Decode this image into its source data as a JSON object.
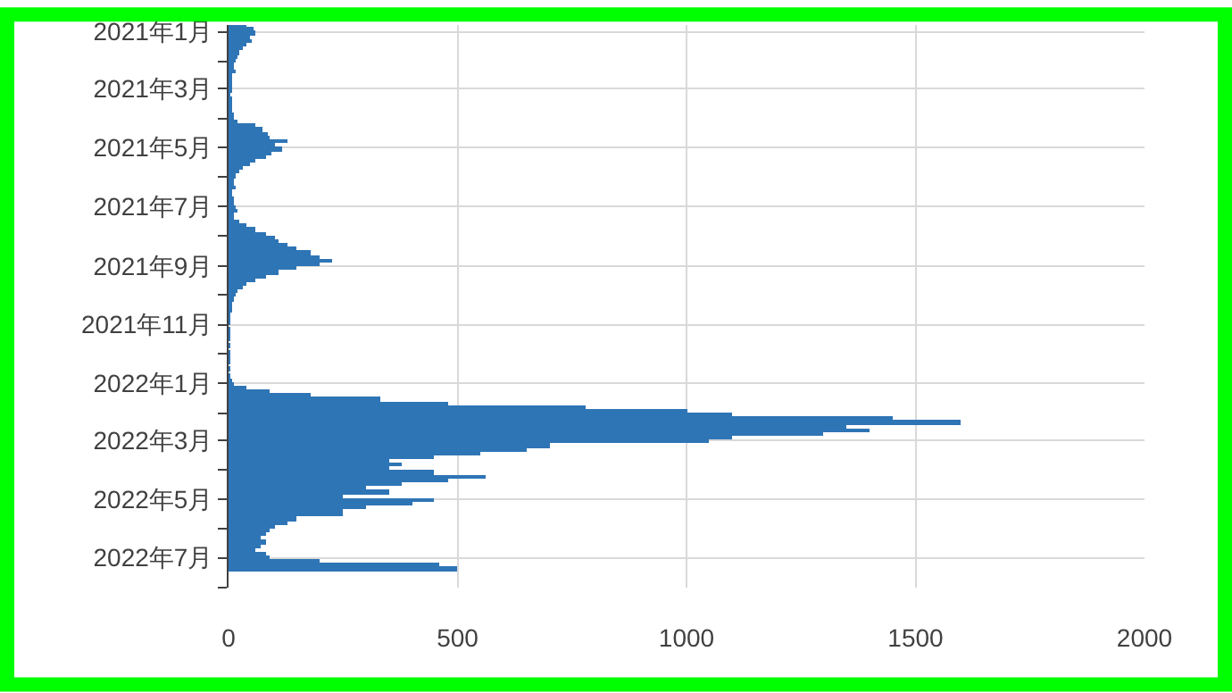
{
  "chart_data": {
    "type": "bar",
    "orientation": "horizontal",
    "color": "#2e75b6",
    "grid": true,
    "xlim": [
      0,
      2000
    ],
    "xticks": [
      0,
      500,
      1000,
      1500,
      2000
    ],
    "ylim": [
      "2022-08-01",
      "2020-12-25"
    ],
    "yticks": [
      {
        "value": "2021-01-01",
        "label": "2021年1月"
      },
      {
        "value": "2021-02-01",
        "label": null
      },
      {
        "value": "2021-03-01",
        "label": "2021年3月"
      },
      {
        "value": "2021-04-01",
        "label": null
      },
      {
        "value": "2021-05-01",
        "label": "2021年5月"
      },
      {
        "value": "2021-06-01",
        "label": null
      },
      {
        "value": "2021-07-01",
        "label": "2021年7月"
      },
      {
        "value": "2021-08-01",
        "label": null
      },
      {
        "value": "2021-09-01",
        "label": "2021年9月"
      },
      {
        "value": "2021-10-01",
        "label": null
      },
      {
        "value": "2021-11-01",
        "label": "2021年11月"
      },
      {
        "value": "2021-12-01",
        "label": null
      },
      {
        "value": "2022-01-01",
        "label": "2022年1月"
      },
      {
        "value": "2022-02-01",
        "label": null
      },
      {
        "value": "2022-03-01",
        "label": "2022年3月"
      },
      {
        "value": "2022-04-01",
        "label": null
      },
      {
        "value": "2022-05-01",
        "label": "2022年5月"
      },
      {
        "value": "2022-06-01",
        "label": null
      },
      {
        "value": "2022-07-01",
        "label": "2022年7月"
      },
      {
        "value": "2022-08-01",
        "label": null
      }
    ],
    "x": [
      "2020-12-26",
      "2020-12-30",
      "2021-01-03",
      "2021-01-07",
      "2021-01-11",
      "2021-01-15",
      "2021-01-19",
      "2021-01-23",
      "2021-01-27",
      "2021-01-31",
      "2021-02-04",
      "2021-02-08",
      "2021-02-12",
      "2021-02-16",
      "2021-02-20",
      "2021-02-24",
      "2021-02-28",
      "2021-03-04",
      "2021-03-08",
      "2021-03-12",
      "2021-03-16",
      "2021-03-20",
      "2021-03-24",
      "2021-03-28",
      "2021-04-01",
      "2021-04-05",
      "2021-04-09",
      "2021-04-13",
      "2021-04-17",
      "2021-04-21",
      "2021-04-25",
      "2021-04-29",
      "2021-05-03",
      "2021-05-07",
      "2021-05-11",
      "2021-05-15",
      "2021-05-19",
      "2021-05-23",
      "2021-05-27",
      "2021-05-31",
      "2021-06-04",
      "2021-06-08",
      "2021-06-12",
      "2021-06-16",
      "2021-06-20",
      "2021-06-24",
      "2021-06-28",
      "2021-07-02",
      "2021-07-06",
      "2021-07-10",
      "2021-07-14",
      "2021-07-18",
      "2021-07-22",
      "2021-07-26",
      "2021-07-30",
      "2021-08-03",
      "2021-08-07",
      "2021-08-11",
      "2021-08-15",
      "2021-08-19",
      "2021-08-23",
      "2021-08-27",
      "2021-08-31",
      "2021-09-04",
      "2021-09-08",
      "2021-09-12",
      "2021-09-16",
      "2021-09-20",
      "2021-09-24",
      "2021-09-28",
      "2021-10-02",
      "2021-10-06",
      "2021-10-10",
      "2021-10-14",
      "2021-10-18",
      "2021-10-22",
      "2021-10-26",
      "2021-10-30",
      "2021-11-07",
      "2021-11-15",
      "2021-11-23",
      "2021-12-01",
      "2021-12-09",
      "2021-12-17",
      "2021-12-25",
      "2021-12-29",
      "2022-01-02",
      "2022-01-06",
      "2022-01-10",
      "2022-01-14",
      "2022-01-18",
      "2022-01-22",
      "2022-01-26",
      "2022-01-30",
      "2022-02-03",
      "2022-02-07",
      "2022-02-11",
      "2022-02-15",
      "2022-02-19",
      "2022-02-23",
      "2022-02-27",
      "2022-03-03",
      "2022-03-07",
      "2022-03-11",
      "2022-03-15",
      "2022-03-19",
      "2022-03-23",
      "2022-03-27",
      "2022-03-31",
      "2022-04-04",
      "2022-04-08",
      "2022-04-12",
      "2022-04-16",
      "2022-04-20",
      "2022-04-24",
      "2022-04-28",
      "2022-05-02",
      "2022-05-06",
      "2022-05-10",
      "2022-05-14",
      "2022-05-18",
      "2022-05-22",
      "2022-05-26",
      "2022-05-30",
      "2022-06-03",
      "2022-06-07",
      "2022-06-11",
      "2022-06-15",
      "2022-06-19",
      "2022-06-23",
      "2022-06-27",
      "2022-07-01",
      "2022-07-05",
      "2022-07-09",
      "2022-07-13"
    ],
    "values": [
      40,
      55,
      60,
      45,
      50,
      40,
      30,
      25,
      20,
      15,
      12,
      10,
      15,
      8,
      6,
      5,
      5,
      4,
      3,
      5,
      4,
      6,
      8,
      10,
      12,
      20,
      60,
      75,
      85,
      90,
      130,
      100,
      115,
      95,
      80,
      60,
      45,
      30,
      25,
      15,
      12,
      10,
      15,
      8,
      8,
      10,
      12,
      15,
      20,
      12,
      10,
      25,
      40,
      60,
      80,
      100,
      110,
      130,
      150,
      180,
      200,
      225,
      200,
      150,
      110,
      80,
      60,
      40,
      30,
      20,
      15,
      10,
      8,
      5,
      5,
      3,
      2,
      2,
      1,
      1,
      1,
      1,
      1,
      2,
      3,
      5,
      10,
      40,
      90,
      180,
      330,
      480,
      780,
      1000,
      1100,
      1450,
      1600,
      1350,
      1400,
      1300,
      1100,
      1050,
      700,
      650,
      550,
      450,
      350,
      380,
      350,
      450,
      560,
      480,
      380,
      300,
      350,
      250,
      450,
      400,
      300,
      250,
      250,
      150,
      130,
      100,
      90,
      80,
      70,
      80,
      70,
      60,
      80,
      90,
      200,
      460,
      500
    ]
  }
}
